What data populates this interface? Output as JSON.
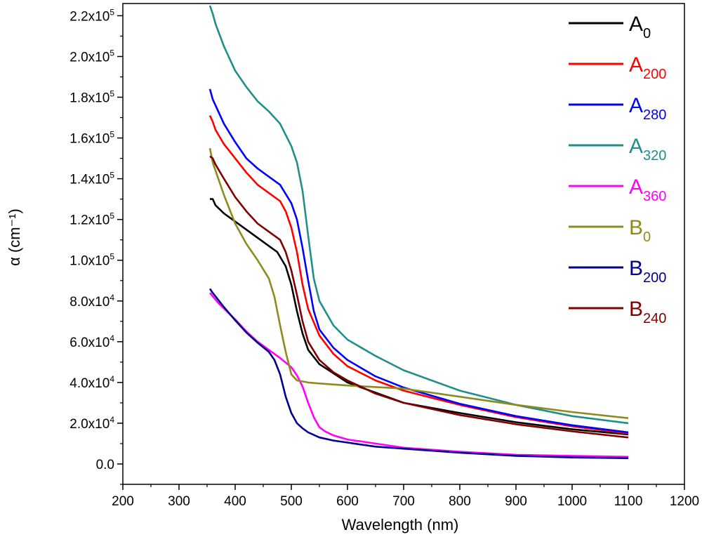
{
  "chart_data": {
    "type": "line",
    "title": "",
    "xlabel": "Wavelength (nm)",
    "ylabel": "α (cm⁻¹)",
    "xlim": [
      200,
      1200
    ],
    "ylim": [
      -10000,
      226000
    ],
    "xticks": [
      200,
      300,
      400,
      500,
      600,
      700,
      800,
      900,
      1000,
      1100,
      1200
    ],
    "yticks": [
      {
        "value": 0,
        "label": "0.0"
      },
      {
        "value": 20000,
        "mantissa": "2.0x10",
        "exp": "4"
      },
      {
        "value": 40000,
        "mantissa": "4.0x10",
        "exp": "4"
      },
      {
        "value": 60000,
        "mantissa": "6.0x10",
        "exp": "4"
      },
      {
        "value": 80000,
        "mantissa": "8.0x10",
        "exp": "4"
      },
      {
        "value": 100000,
        "mantissa": "1.0x10",
        "exp": "5"
      },
      {
        "value": 120000,
        "mantissa": "1.2x10",
        "exp": "5"
      },
      {
        "value": 140000,
        "mantissa": "1.4x10",
        "exp": "5"
      },
      {
        "value": 160000,
        "mantissa": "1.6x10",
        "exp": "5"
      },
      {
        "value": 180000,
        "mantissa": "1.8x10",
        "exp": "5"
      },
      {
        "value": 200000,
        "mantissa": "2.0x10",
        "exp": "5"
      },
      {
        "value": 220000,
        "mantissa": "2.2x10",
        "exp": "5"
      }
    ],
    "grid": false,
    "legend_position": "top-right",
    "series": [
      {
        "name": "A",
        "sub": "0",
        "color": "#000000",
        "x": [
          355,
          360,
          365,
          380,
          400,
          420,
          440,
          460,
          475,
          490,
          500,
          510,
          520,
          530,
          550,
          575,
          600,
          650,
          700,
          800,
          900,
          1000,
          1100
        ],
        "y": [
          130000,
          130000,
          127000,
          123000,
          119000,
          115000,
          111000,
          107000,
          104000,
          97000,
          88000,
          75000,
          64000,
          56000,
          49000,
          44500,
          40000,
          35000,
          30000,
          25000,
          20500,
          17000,
          14500
        ]
      },
      {
        "name": "A",
        "sub": "200",
        "color": "#ff0000",
        "x": [
          355,
          360,
          365,
          380,
          400,
          420,
          440,
          460,
          480,
          490,
          500,
          510,
          520,
          530,
          550,
          575,
          600,
          650,
          700,
          800,
          900,
          1000,
          1100
        ],
        "y": [
          171000,
          168000,
          164000,
          157000,
          150000,
          143000,
          137000,
          133000,
          129000,
          124000,
          116000,
          104000,
          88000,
          76000,
          63000,
          54000,
          48000,
          41000,
          36000,
          29000,
          23000,
          18500,
          15000
        ]
      },
      {
        "name": "A",
        "sub": "280",
        "color": "#0000ff",
        "x": [
          355,
          360,
          365,
          380,
          400,
          420,
          440,
          460,
          480,
          500,
          510,
          520,
          530,
          540,
          550,
          575,
          600,
          650,
          700,
          800,
          900,
          1000,
          1100
        ],
        "y": [
          184000,
          179000,
          176000,
          167000,
          158000,
          150000,
          145000,
          141000,
          137000,
          128000,
          120000,
          106000,
          90000,
          75000,
          66000,
          57000,
          51000,
          43000,
          37500,
          29500,
          23500,
          19000,
          15500
        ]
      },
      {
        "name": "A",
        "sub": "320",
        "color": "#1f8f8c",
        "x": [
          355,
          360,
          365,
          380,
          400,
          420,
          440,
          460,
          480,
          500,
          510,
          520,
          530,
          540,
          550,
          575,
          600,
          650,
          700,
          800,
          900,
          1000,
          1100
        ],
        "y": [
          225000,
          221000,
          216000,
          205000,
          193000,
          185000,
          178000,
          173000,
          167000,
          156000,
          148000,
          134000,
          112000,
          91000,
          80000,
          68000,
          61000,
          53000,
          46000,
          36000,
          29000,
          23500,
          20000
        ]
      },
      {
        "name": "A",
        "sub": "360",
        "color": "#ff00ff",
        "x": [
          355,
          370,
          400,
          420,
          440,
          460,
          480,
          500,
          510,
          520,
          530,
          540,
          550,
          560,
          575,
          600,
          650,
          700,
          800,
          900,
          1000,
          1100
        ],
        "y": [
          84000,
          79000,
          71000,
          65000,
          60000,
          56000,
          52000,
          47500,
          43500,
          38000,
          30000,
          23000,
          18000,
          16000,
          14000,
          12000,
          10000,
          8000,
          6000,
          4500,
          4000,
          3500
        ]
      },
      {
        "name": "B",
        "sub": "0",
        "color": "#8c8c1e",
        "x": [
          355,
          360,
          370,
          380,
          400,
          420,
          440,
          460,
          470,
          480,
          490,
          500,
          510,
          520,
          530,
          550,
          600,
          700,
          800,
          900,
          1000,
          1100
        ],
        "y": [
          155000,
          148000,
          140000,
          132000,
          118000,
          108000,
          100000,
          91000,
          82000,
          68000,
          55000,
          44000,
          41000,
          40500,
          40000,
          39500,
          38500,
          37000,
          33000,
          29000,
          25500,
          22500
        ]
      },
      {
        "name": "B",
        "sub": "200",
        "color": "#00008b",
        "x": [
          355,
          360,
          370,
          380,
          400,
          420,
          440,
          460,
          470,
          480,
          490,
          500,
          510,
          520,
          530,
          550,
          575,
          600,
          650,
          700,
          800,
          900,
          1000,
          1100
        ],
        "y": [
          86000,
          84000,
          80500,
          77000,
          70500,
          64500,
          59500,
          55000,
          51000,
          44000,
          33000,
          25000,
          20000,
          17500,
          15500,
          13000,
          11500,
          10500,
          8500,
          7500,
          5500,
          4000,
          3200,
          2800
        ]
      },
      {
        "name": "B",
        "sub": "240",
        "color": "#800000",
        "x": [
          355,
          360,
          365,
          380,
          400,
          420,
          440,
          460,
          480,
          490,
          500,
          510,
          520,
          530,
          550,
          575,
          600,
          650,
          700,
          800,
          900,
          1000,
          1100
        ],
        "y": [
          151000,
          150000,
          147000,
          140000,
          131000,
          124000,
          118000,
          114000,
          110000,
          104000,
          95000,
          83000,
          70000,
          60000,
          51000,
          45000,
          41000,
          34500,
          30000,
          24000,
          19500,
          16000,
          13000
        ]
      }
    ]
  }
}
